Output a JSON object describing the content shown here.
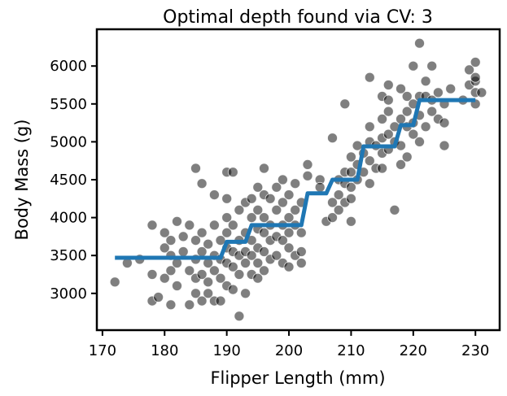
{
  "chart_data": {
    "type": "scatter",
    "title": "Optimal depth found via CV: 3",
    "xlabel": "Flipper Length (mm)",
    "ylabel": "Body Mass (g)",
    "xlim": [
      169.1,
      233.9
    ],
    "ylim": [
      2515,
      6485
    ],
    "xticks": [
      170,
      180,
      190,
      200,
      210,
      220,
      230
    ],
    "yticks": [
      3000,
      3500,
      4000,
      4500,
      5000,
      5500,
      6000
    ],
    "grid": false,
    "legend": "none",
    "colors": {
      "points": "#000000",
      "line": "#1f77b4"
    },
    "series": [
      {
        "type": "scatter",
        "points": [
          [
            172,
            3150
          ],
          [
            174,
            3400
          ],
          [
            176,
            3450
          ],
          [
            178,
            3900
          ],
          [
            178,
            3250
          ],
          [
            178,
            2900
          ],
          [
            179,
            2950
          ],
          [
            180,
            3800
          ],
          [
            180,
            3600
          ],
          [
            180,
            3200
          ],
          [
            181,
            3700
          ],
          [
            181,
            3500
          ],
          [
            181,
            3300
          ],
          [
            181,
            2850
          ],
          [
            182,
            3950
          ],
          [
            182,
            3400
          ],
          [
            182,
            3100
          ],
          [
            183,
            3750
          ],
          [
            183,
            3550
          ],
          [
            184,
            3900
          ],
          [
            184,
            3300
          ],
          [
            184,
            2850
          ],
          [
            185,
            3700
          ],
          [
            185,
            3450
          ],
          [
            185,
            3200
          ],
          [
            185,
            3000
          ],
          [
            185,
            4650
          ],
          [
            186,
            4450
          ],
          [
            186,
            3800
          ],
          [
            186,
            3550
          ],
          [
            186,
            3250
          ],
          [
            186,
            2900
          ],
          [
            187,
            3650
          ],
          [
            187,
            3400
          ],
          [
            187,
            3150
          ],
          [
            187,
            3000
          ],
          [
            188,
            3900
          ],
          [
            188,
            3500
          ],
          [
            188,
            3300
          ],
          [
            188,
            2900
          ],
          [
            188,
            4300
          ],
          [
            189,
            3700
          ],
          [
            189,
            3450
          ],
          [
            189,
            3200
          ],
          [
            189,
            2900
          ],
          [
            190,
            4250
          ],
          [
            190,
            4000
          ],
          [
            190,
            3800
          ],
          [
            190,
            3600
          ],
          [
            190,
            3400
          ],
          [
            190,
            3100
          ],
          [
            190,
            4600
          ],
          [
            191,
            3900
          ],
          [
            191,
            3550
          ],
          [
            191,
            3350
          ],
          [
            191,
            3050
          ],
          [
            191,
            4600
          ],
          [
            192,
            4100
          ],
          [
            192,
            3700
          ],
          [
            192,
            3500
          ],
          [
            192,
            3250
          ],
          [
            192,
            2700
          ],
          [
            193,
            4200
          ],
          [
            193,
            3800
          ],
          [
            193,
            3550
          ],
          [
            193,
            3400
          ],
          [
            193,
            3000
          ],
          [
            194,
            4250
          ],
          [
            194,
            4000
          ],
          [
            194,
            3700
          ],
          [
            194,
            3500
          ],
          [
            194,
            3250
          ],
          [
            195,
            4400
          ],
          [
            195,
            4100
          ],
          [
            195,
            3850
          ],
          [
            195,
            3600
          ],
          [
            195,
            3400
          ],
          [
            195,
            3200
          ],
          [
            196,
            4300
          ],
          [
            196,
            4000
          ],
          [
            196,
            3800
          ],
          [
            196,
            3550
          ],
          [
            196,
            3300
          ],
          [
            196,
            4650
          ],
          [
            197,
            4250
          ],
          [
            197,
            3900
          ],
          [
            197,
            3700
          ],
          [
            197,
            3450
          ],
          [
            198,
            4400
          ],
          [
            198,
            4100
          ],
          [
            198,
            3750
          ],
          [
            198,
            3500
          ],
          [
            199,
            4500
          ],
          [
            199,
            4200
          ],
          [
            199,
            3900
          ],
          [
            199,
            3700
          ],
          [
            199,
            3400
          ],
          [
            200,
            4300
          ],
          [
            200,
            4000
          ],
          [
            200,
            3800
          ],
          [
            200,
            3600
          ],
          [
            200,
            3350
          ],
          [
            201,
            4450
          ],
          [
            201,
            4100
          ],
          [
            201,
            3900
          ],
          [
            201,
            3500
          ],
          [
            202,
            4200
          ],
          [
            202,
            3800
          ],
          [
            202,
            3550
          ],
          [
            202,
            3400
          ],
          [
            203,
            4700
          ],
          [
            203,
            4550
          ],
          [
            205,
            4500
          ],
          [
            205,
            4400
          ],
          [
            206,
            3950
          ],
          [
            207,
            5050
          ],
          [
            207,
            4200
          ],
          [
            207,
            4000
          ],
          [
            208,
            4500
          ],
          [
            208,
            4300
          ],
          [
            208,
            4100
          ],
          [
            209,
            5500
          ],
          [
            209,
            4600
          ],
          [
            209,
            4450
          ],
          [
            209,
            4200
          ],
          [
            210,
            4800
          ],
          [
            210,
            4600
          ],
          [
            210,
            4400
          ],
          [
            210,
            4250
          ],
          [
            210,
            3950
          ],
          [
            211,
            4950
          ],
          [
            211,
            4700
          ],
          [
            211,
            4500
          ],
          [
            212,
            4850
          ],
          [
            212,
            4600
          ],
          [
            213,
            5850
          ],
          [
            213,
            5200
          ],
          [
            213,
            5000
          ],
          [
            213,
            4750
          ],
          [
            213,
            4450
          ],
          [
            214,
            4950
          ],
          [
            214,
            4650
          ],
          [
            215,
            5300
          ],
          [
            215,
            5050
          ],
          [
            215,
            4850
          ],
          [
            215,
            4650
          ],
          [
            215,
            5600
          ],
          [
            216,
            5750
          ],
          [
            216,
            5400
          ],
          [
            216,
            5100
          ],
          [
            216,
            4900
          ],
          [
            216,
            5550
          ],
          [
            217,
            5200
          ],
          [
            217,
            5000
          ],
          [
            217,
            4100
          ],
          [
            218,
            5700
          ],
          [
            218,
            5300
          ],
          [
            218,
            4950
          ],
          [
            218,
            4700
          ],
          [
            219,
            5600
          ],
          [
            219,
            5200
          ],
          [
            219,
            4800
          ],
          [
            219,
            5400
          ],
          [
            220,
            5500
          ],
          [
            220,
            5250
          ],
          [
            220,
            5100
          ],
          [
            220,
            6000
          ],
          [
            221,
            6300
          ],
          [
            221,
            5600
          ],
          [
            221,
            5350
          ],
          [
            221,
            5000
          ],
          [
            222,
            5600
          ],
          [
            222,
            5200
          ],
          [
            222,
            5800
          ],
          [
            223,
            6000
          ],
          [
            223,
            5550
          ],
          [
            223,
            5400
          ],
          [
            224,
            5650
          ],
          [
            224,
            5300
          ],
          [
            225,
            5500
          ],
          [
            225,
            5250
          ],
          [
            225,
            4950
          ],
          [
            226,
            5700
          ],
          [
            228,
            5550
          ],
          [
            229,
            5950
          ],
          [
            229,
            5750
          ],
          [
            230,
            6050
          ],
          [
            230,
            5800
          ],
          [
            230,
            5650
          ],
          [
            230,
            5500
          ],
          [
            230,
            5850
          ],
          [
            231,
            5650
          ]
        ]
      },
      {
        "type": "step-line",
        "points": [
          [
            172,
            3470
          ],
          [
            189,
            3470
          ],
          [
            190,
            3680
          ],
          [
            193,
            3680
          ],
          [
            194,
            3900
          ],
          [
            202,
            3900
          ],
          [
            203,
            4320
          ],
          [
            206,
            4320
          ],
          [
            207,
            4500
          ],
          [
            211,
            4500
          ],
          [
            212,
            4940
          ],
          [
            217,
            4940
          ],
          [
            218,
            5220
          ],
          [
            220,
            5220
          ],
          [
            221,
            5550
          ],
          [
            230,
            5550
          ]
        ]
      }
    ]
  }
}
